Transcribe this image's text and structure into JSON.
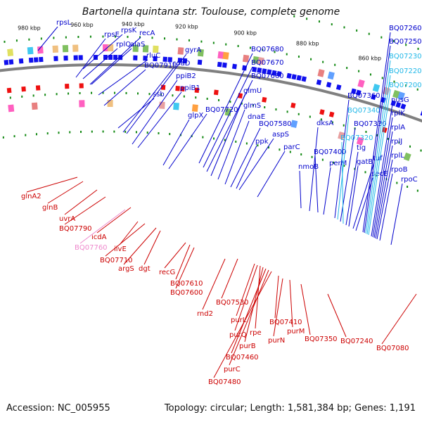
{
  "title": "Bartonella quintana str. Toulouse, complete genome",
  "accession": "Accession: NC_005955",
  "summary": "Topology: circular; Length: 1,581,384 bp; Genes: 1,191",
  "colors": {
    "backbone": "#808080",
    "forward_label": "#0000cc",
    "reverse_label": "#cc0000",
    "forward_feature": "#1010ee",
    "reverse_feature": "#ee1010",
    "tick": "#118811",
    "highlight_forward": "#22b8e8",
    "highlight_reverse": "#ee88cc"
  },
  "ticks": [
    "980 kbp",
    "960 kbp",
    "940 kbp",
    "920 kbp",
    "900 kbp",
    "880 kbp",
    "860 kbp"
  ],
  "forward_labels": [
    {
      "text": "rpsL",
      "color": "#0000cc"
    },
    {
      "text": "rpsE",
      "color": "#0000cc"
    },
    {
      "text": "rpsK",
      "color": "#0000cc"
    },
    {
      "text": "recA",
      "color": "#0000cc"
    },
    {
      "text": "rplQ",
      "color": "#0000cc"
    },
    {
      "text": "alaS",
      "color": "#0000cc"
    },
    {
      "text": "rluC",
      "color": "#0000cc"
    },
    {
      "text": "BQ07910",
      "color": "#0000cc"
    },
    {
      "text": "gyrA",
      "color": "#0000cc"
    },
    {
      "text": "coaD",
      "color": "#0000cc"
    },
    {
      "text": "ppiB2",
      "color": "#0000cc"
    },
    {
      "text": "ppiB1",
      "color": "#0000cc"
    },
    {
      "text": "ssb",
      "color": "#0000cc"
    },
    {
      "text": "glpX",
      "color": "#0000cc"
    },
    {
      "text": "BQ07720",
      "color": "#0000cc"
    },
    {
      "text": "BQ07680",
      "color": "#0000cc"
    },
    {
      "text": "BQ07670",
      "color": "#0000cc"
    },
    {
      "text": "BQ07660",
      "color": "#0000cc"
    },
    {
      "text": "glmU",
      "color": "#0000cc"
    },
    {
      "text": "glmS",
      "color": "#0000cc"
    },
    {
      "text": "dnaE",
      "color": "#0000cc"
    },
    {
      "text": "BQ07580",
      "color": "#0000cc"
    },
    {
      "text": "aspS",
      "color": "#0000cc"
    },
    {
      "text": "ppk",
      "color": "#0000cc"
    },
    {
      "text": "parC",
      "color": "#0000cc"
    },
    {
      "text": "nmoB",
      "color": "#0000cc"
    },
    {
      "text": "dksA",
      "color": "#0000cc"
    },
    {
      "text": "BQ07400",
      "color": "#0000cc"
    },
    {
      "text": "perM",
      "color": "#0000cc"
    },
    {
      "text": "BQ07360",
      "color": "#0000cc"
    },
    {
      "text": "BQ07340",
      "color": "#22b8e8"
    },
    {
      "text": "BQ07330",
      "color": "#0000cc"
    },
    {
      "text": "BQ07320",
      "color": "#22b8e8"
    },
    {
      "text": "tig",
      "color": "#0000cc"
    },
    {
      "text": "gatB",
      "color": "#0000cc"
    },
    {
      "text": "tuf",
      "color": "#0000cc"
    },
    {
      "text": "secE",
      "color": "#0000cc"
    },
    {
      "text": "BQ07260",
      "color": "#0000cc"
    },
    {
      "text": "BQ07250",
      "color": "#0000cc"
    },
    {
      "text": "BQ07230",
      "color": "#22b8e8"
    },
    {
      "text": "BQ07220",
      "color": "#22b8e8"
    },
    {
      "text": "BQ07200",
      "color": "#22b8e8"
    },
    {
      "text": "nusG",
      "color": "#0000cc"
    },
    {
      "text": "rplK",
      "color": "#0000cc"
    },
    {
      "text": "rplA",
      "color": "#0000cc"
    },
    {
      "text": "rplJ",
      "color": "#0000cc"
    },
    {
      "text": "rplL",
      "color": "#0000cc"
    },
    {
      "text": "rpoB",
      "color": "#0000cc"
    },
    {
      "text": "rpoC",
      "color": "#0000cc"
    }
  ],
  "reverse_labels": [
    {
      "text": "glnA2",
      "color": "#cc0000"
    },
    {
      "text": "glnB",
      "color": "#cc0000"
    },
    {
      "text": "uvrA",
      "color": "#cc0000"
    },
    {
      "text": "BQ07790",
      "color": "#cc0000"
    },
    {
      "text": "icdA",
      "color": "#cc0000"
    },
    {
      "text": "BQ07760",
      "color": "#ee88cc"
    },
    {
      "text": "ilvE",
      "color": "#cc0000"
    },
    {
      "text": "BQ07710",
      "color": "#cc0000"
    },
    {
      "text": "argS",
      "color": "#cc0000"
    },
    {
      "text": "dgt",
      "color": "#cc0000"
    },
    {
      "text": "recG",
      "color": "#cc0000"
    },
    {
      "text": "BQ07610",
      "color": "#cc0000"
    },
    {
      "text": "BQ07600",
      "color": "#cc0000"
    },
    {
      "text": "rnd2",
      "color": "#cc0000"
    },
    {
      "text": "BQ07530",
      "color": "#cc0000"
    },
    {
      "text": "purL",
      "color": "#cc0000"
    },
    {
      "text": "purQ",
      "color": "#cc0000"
    },
    {
      "text": "rpe",
      "color": "#cc0000"
    },
    {
      "text": "purB",
      "color": "#cc0000"
    },
    {
      "text": "BQ07460",
      "color": "#cc0000"
    },
    {
      "text": "purC",
      "color": "#cc0000"
    },
    {
      "text": "BQ07480",
      "color": "#cc0000"
    },
    {
      "text": "BQ07410",
      "color": "#cc0000"
    },
    {
      "text": "purN",
      "color": "#cc0000"
    },
    {
      "text": "purM",
      "color": "#cc0000"
    },
    {
      "text": "BQ07350",
      "color": "#cc0000"
    },
    {
      "text": "BQ07240",
      "color": "#cc0000"
    },
    {
      "text": "BQ07080",
      "color": "#cc0000"
    }
  ]
}
